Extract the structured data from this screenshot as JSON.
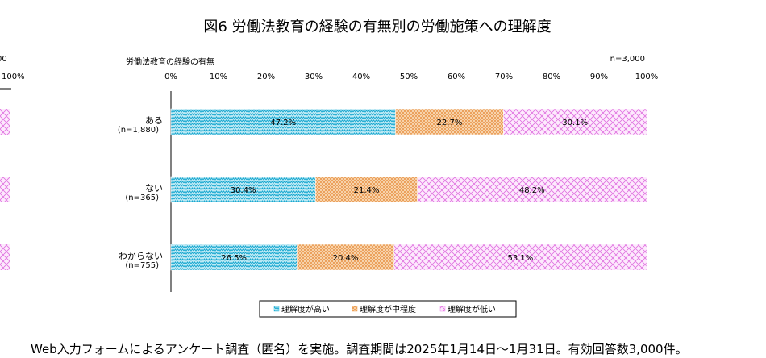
{
  "neighbor_fragment": {
    "n_text": "00",
    "tick_text": "100%"
  },
  "chart_data": {
    "type": "bar",
    "orientation": "horizontal",
    "stacked": true,
    "percent": true,
    "title": "図6  労働法教育の経験の有無別の労働施策への理解度",
    "group_label": "労働法教育の経験の有無",
    "sample_note": "n=3,000",
    "xlim": [
      0,
      100
    ],
    "x_ticks": [
      "0%",
      "10%",
      "20%",
      "30%",
      "40%",
      "50%",
      "60%",
      "70%",
      "80%",
      "90%",
      "100%"
    ],
    "categories": [
      {
        "label": "ある",
        "n": "(n=1,880)"
      },
      {
        "label": "ない",
        "n": "(n=365)"
      },
      {
        "label": "わからない",
        "n": "(n=755)"
      }
    ],
    "series": [
      {
        "name": "理解度が高い",
        "color": "#33bbdd",
        "values": [
          47.2,
          30.4,
          26.5
        ]
      },
      {
        "name": "理解度が中程度",
        "color": "#f0a050",
        "values": [
          22.7,
          21.4,
          20.4
        ]
      },
      {
        "name": "理解度が低い",
        "color": "#ee88ee",
        "values": [
          30.1,
          48.2,
          53.1
        ]
      }
    ],
    "legend_position": "bottom",
    "grid": false
  },
  "footnote": "Web入力フォームによるアンケート調査（匿名）を実施。調査期間は2025年1月14日～1月31日。有効回答数3,000件。"
}
